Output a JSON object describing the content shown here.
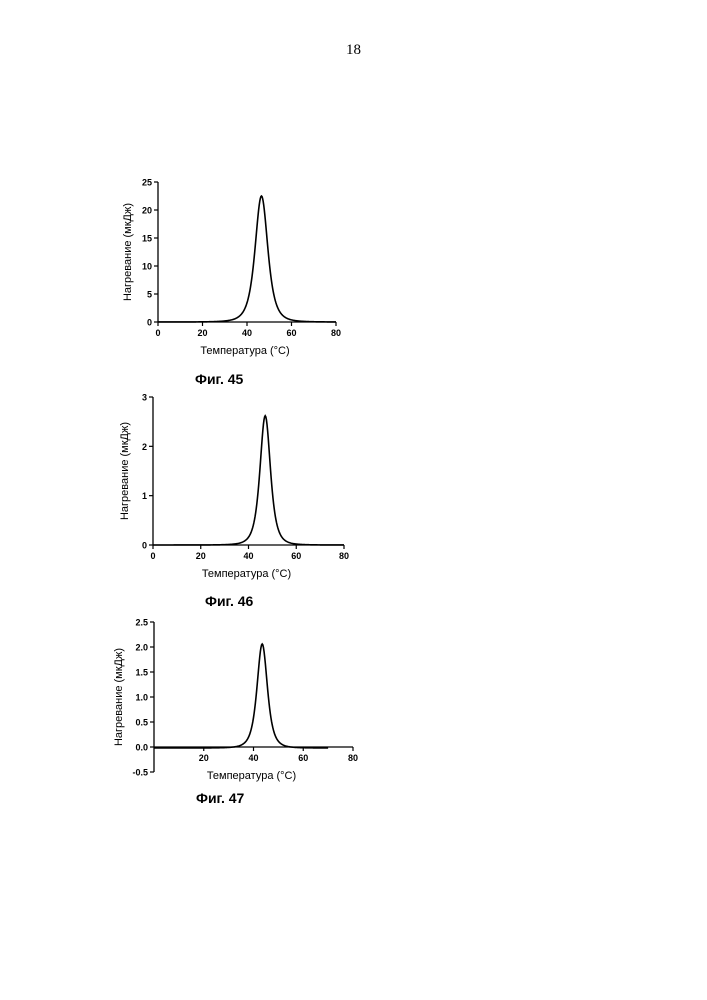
{
  "page": {
    "number": "18"
  },
  "chart_data": [
    {
      "type": "line",
      "caption": "Фиг. 45",
      "xlabel": "Температура (°C)",
      "ylabel": "Нагревание (мкДж)",
      "xlim": [
        0,
        80
      ],
      "ylim": [
        0,
        25
      ],
      "xticks": [
        0,
        20,
        40,
        60,
        80
      ],
      "yticks": [
        0,
        5,
        10,
        15,
        20,
        25
      ],
      "ytick_labels": [
        "0",
        "5",
        "10",
        "15",
        "20",
        "25"
      ],
      "grid": false,
      "series": [
        {
          "peak_x": 46.5,
          "peak_y": 22.5,
          "width": 5.2,
          "x_start": 0,
          "x_end": 80
        }
      ]
    },
    {
      "type": "line",
      "caption": "Фиг. 46",
      "xlabel": "Температура (°C)",
      "ylabel": "Нагревание (мкДж)",
      "xlim": [
        0,
        80
      ],
      "ylim": [
        0,
        3
      ],
      "xticks": [
        0,
        20,
        40,
        60,
        80
      ],
      "yticks": [
        0,
        1,
        2,
        3
      ],
      "ytick_labels": [
        "0",
        "1",
        "2",
        "3"
      ],
      "grid": false,
      "series": [
        {
          "peak_x": 47,
          "peak_y": 2.62,
          "width": 4.0,
          "x_start": 0,
          "x_end": 80
        }
      ]
    },
    {
      "type": "line",
      "caption": "Фиг. 47",
      "xlabel": "Температура (°C)",
      "ylabel": "Нагревание (мкДж)",
      "xlim": [
        0,
        80
      ],
      "ylim": [
        -0.5,
        2.5
      ],
      "xticks": [
        20,
        40,
        60,
        80
      ],
      "yticks": [
        -0.5,
        0,
        0.5,
        1,
        1.5,
        2,
        2.5
      ],
      "ytick_labels": [
        "-0.5",
        "0.0",
        "0.5",
        "1.0",
        "1.5",
        "2.0",
        "2.5"
      ],
      "grid": false,
      "series": [
        {
          "peak_x": 43.5,
          "peak_y": 2.06,
          "width": 3.8,
          "x_start": 0,
          "x_end": 70,
          "baseline": -0.02
        }
      ]
    }
  ]
}
